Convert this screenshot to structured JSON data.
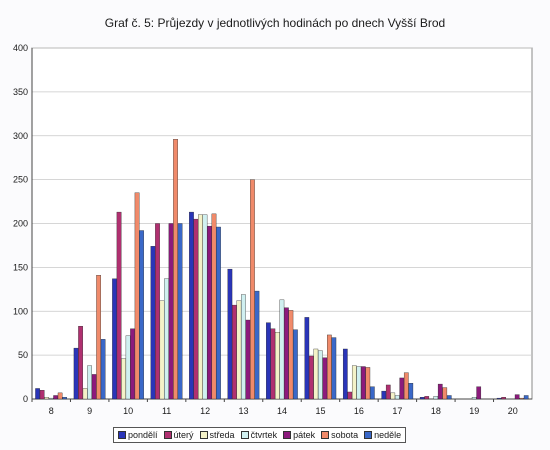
{
  "chart_data": {
    "type": "bar",
    "title": "Graf č. 5: Průjezdy v jednotlivých hodinách po dnech Vyšší Brod",
    "xlabel": "",
    "ylabel": "",
    "ylim": [
      0,
      400
    ],
    "yticks": [
      "0",
      "50",
      "100",
      "150",
      "200",
      "250",
      "300",
      "350",
      "400"
    ],
    "categories": [
      "8",
      "9",
      "10",
      "11",
      "12",
      "13",
      "14",
      "15",
      "16",
      "17",
      "18",
      "19",
      "20"
    ],
    "grid": true,
    "legend_position": "bottom",
    "series": [
      {
        "name": "pondělí",
        "color": "#2a35b8",
        "values": [
          12,
          58,
          137,
          174,
          213,
          148,
          87,
          93,
          57,
          9,
          2,
          0,
          1
        ]
      },
      {
        "name": "úterý",
        "color": "#b03070",
        "values": [
          10,
          83,
          213,
          200,
          205,
          107,
          80,
          49,
          8,
          16,
          3,
          0,
          2
        ]
      },
      {
        "name": "středa",
        "color": "#f4f2c8",
        "values": [
          2,
          12,
          46,
          112,
          210,
          112,
          76,
          57,
          38,
          7,
          0,
          0,
          0
        ]
      },
      {
        "name": "čtvrtek",
        "color": "#d0f0f0",
        "values": [
          1,
          38,
          72,
          137,
          210,
          119,
          113,
          55,
          37,
          4,
          3,
          2,
          0
        ]
      },
      {
        "name": "pátek",
        "color": "#8c1a7c",
        "values": [
          4,
          28,
          80,
          200,
          197,
          90,
          104,
          47,
          37,
          24,
          17,
          14,
          5
        ]
      },
      {
        "name": "sobota",
        "color": "#f08a6a",
        "values": [
          7,
          141,
          235,
          296,
          211,
          250,
          101,
          73,
          36,
          30,
          13,
          0,
          1
        ]
      },
      {
        "name": "neděle",
        "color": "#3a68c8",
        "values": [
          2,
          68,
          192,
          200,
          196,
          123,
          79,
          70,
          14,
          18,
          4,
          0,
          4
        ]
      }
    ]
  }
}
